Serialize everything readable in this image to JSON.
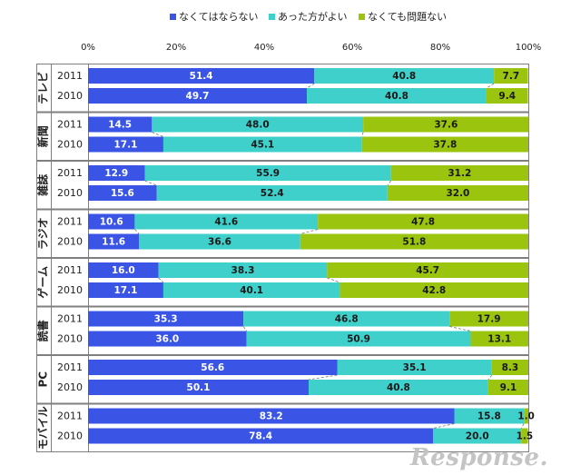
{
  "chart_data": {
    "type": "bar",
    "orientation": "horizontal",
    "stacked": true,
    "percent": true,
    "legend_position": "top",
    "xlim": [
      0,
      100
    ],
    "x_ticks": [
      "0%",
      "20%",
      "40%",
      "60%",
      "80%",
      "100%"
    ],
    "series": [
      {
        "name": "なくてはならない",
        "color": "#3a55e6"
      },
      {
        "name": "あった方がよい",
        "color": "#3fd0cc"
      },
      {
        "name": "なくても問題ない",
        "color": "#9bc40e"
      }
    ],
    "groups": [
      {
        "label": "テレビ",
        "rows": [
          {
            "year": "2011",
            "values": [
              51.4,
              40.8,
              7.7
            ],
            "labels": [
              "51.4",
              "40.8",
              "7.7"
            ]
          },
          {
            "year": "2010",
            "values": [
              49.7,
              40.8,
              9.4
            ],
            "labels": [
              "49.7",
              "40.8",
              "9.4"
            ]
          }
        ]
      },
      {
        "label": "新聞",
        "rows": [
          {
            "year": "2011",
            "values": [
              14.5,
              48.0,
              37.6
            ],
            "labels": [
              "14.5",
              "48.0",
              "37.6"
            ]
          },
          {
            "year": "2010",
            "values": [
              17.1,
              45.1,
              37.8
            ],
            "labels": [
              "17.1",
              "45.1",
              "37.8"
            ]
          }
        ]
      },
      {
        "label": "雑誌",
        "rows": [
          {
            "year": "2011",
            "values": [
              12.9,
              55.9,
              31.2
            ],
            "labels": [
              "12.9",
              "55.9",
              "31.2"
            ]
          },
          {
            "year": "2010",
            "values": [
              15.6,
              52.4,
              32.0
            ],
            "labels": [
              "15.6",
              "52.4",
              "32.0"
            ]
          }
        ]
      },
      {
        "label": "ラジオ",
        "rows": [
          {
            "year": "2011",
            "values": [
              10.6,
              41.6,
              47.8
            ],
            "labels": [
              "10.6",
              "41.6",
              "47.8"
            ]
          },
          {
            "year": "2010",
            "values": [
              11.6,
              36.6,
              51.8
            ],
            "labels": [
              "11.6",
              "36.6",
              "51.8"
            ]
          }
        ]
      },
      {
        "label": "ゲーム",
        "rows": [
          {
            "year": "2011",
            "values": [
              16.0,
              38.3,
              45.7
            ],
            "labels": [
              "16.0",
              "38.3",
              "45.7"
            ]
          },
          {
            "year": "2010",
            "values": [
              17.1,
              40.1,
              42.8
            ],
            "labels": [
              "17.1",
              "40.1",
              "42.8"
            ]
          }
        ]
      },
      {
        "label": "読書",
        "rows": [
          {
            "year": "2011",
            "values": [
              35.3,
              46.8,
              17.9
            ],
            "labels": [
              "35.3",
              "46.8",
              "17.9"
            ]
          },
          {
            "year": "2010",
            "values": [
              36.0,
              50.9,
              13.1
            ],
            "labels": [
              "36.0",
              "50.9",
              "13.1"
            ]
          }
        ]
      },
      {
        "label": "PC",
        "rows": [
          {
            "year": "2011",
            "values": [
              56.6,
              35.1,
              8.3
            ],
            "labels": [
              "56.6",
              "35.1",
              "8.3"
            ]
          },
          {
            "year": "2010",
            "values": [
              50.1,
              40.8,
              9.1
            ],
            "labels": [
              "50.1",
              "40.8",
              "9.1"
            ]
          }
        ]
      },
      {
        "label": "モバイル",
        "rows": [
          {
            "year": "2011",
            "values": [
              83.2,
              15.8,
              1.0
            ],
            "labels": [
              "83.2",
              "15.8",
              "1.0"
            ]
          },
          {
            "year": "2010",
            "values": [
              78.4,
              20.0,
              1.5
            ],
            "labels": [
              "78.4",
              "20.0",
              "1.5"
            ]
          }
        ]
      }
    ]
  },
  "watermark": "Response."
}
